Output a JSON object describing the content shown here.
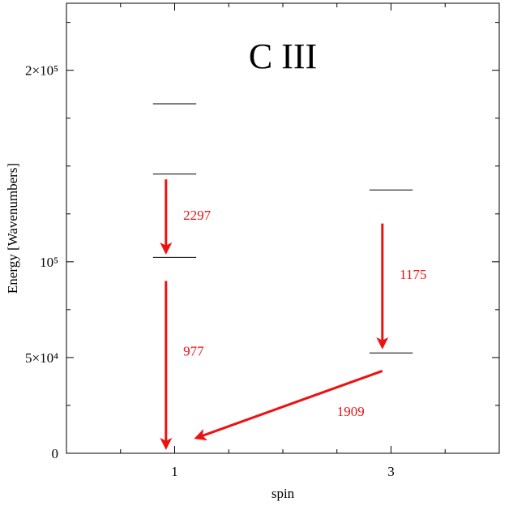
{
  "chart_data": {
    "type": "scatter",
    "title": "C III",
    "xlabel": "spin",
    "ylabel": "Energy [Wavenumbers]",
    "xlim": [
      0,
      4
    ],
    "ylim": [
      0,
      235000
    ],
    "x_ticks": [
      1,
      3
    ],
    "x_tick_labels": [
      "1",
      "3"
    ],
    "y_ticks": [
      0,
      50000,
      100000,
      200000
    ],
    "y_tick_labels": [
      "0",
      "5×10⁴",
      "10⁵",
      "2×10⁵"
    ],
    "y_minor_ticks": [
      25000,
      75000,
      125000,
      150000,
      175000,
      225000
    ],
    "grid": false,
    "levels": [
      {
        "spin": 1,
        "energy": 182500
      },
      {
        "spin": 1,
        "energy": 145800
      },
      {
        "spin": 1,
        "energy": 102300
      },
      {
        "spin": 1,
        "energy": 0
      },
      {
        "spin": 3,
        "energy": 137500
      },
      {
        "spin": 3,
        "energy": 52400
      }
    ],
    "transitions": [
      {
        "label": "2297",
        "from": {
          "spin": 0.92,
          "energy": 143000
        },
        "to": {
          "spin": 0.92,
          "energy": 105000
        },
        "label_pos": {
          "spin": 1.08,
          "energy": 122000
        }
      },
      {
        "label": "977",
        "from": {
          "spin": 0.92,
          "energy": 90000
        },
        "to": {
          "spin": 0.92,
          "energy": 3000
        },
        "label_pos": {
          "spin": 1.08,
          "energy": 51000
        }
      },
      {
        "label": "1175",
        "from": {
          "spin": 2.92,
          "energy": 120000
        },
        "to": {
          "spin": 2.92,
          "energy": 55500
        },
        "label_pos": {
          "spin": 3.08,
          "energy": 91000
        }
      },
      {
        "label": "1909",
        "from": {
          "spin": 2.92,
          "energy": 43000
        },
        "to": {
          "spin": 1.2,
          "energy": 8000
        },
        "label_pos": {
          "spin": 2.5,
          "energy": 19500
        }
      }
    ],
    "arrow_color": "#ee1111"
  }
}
